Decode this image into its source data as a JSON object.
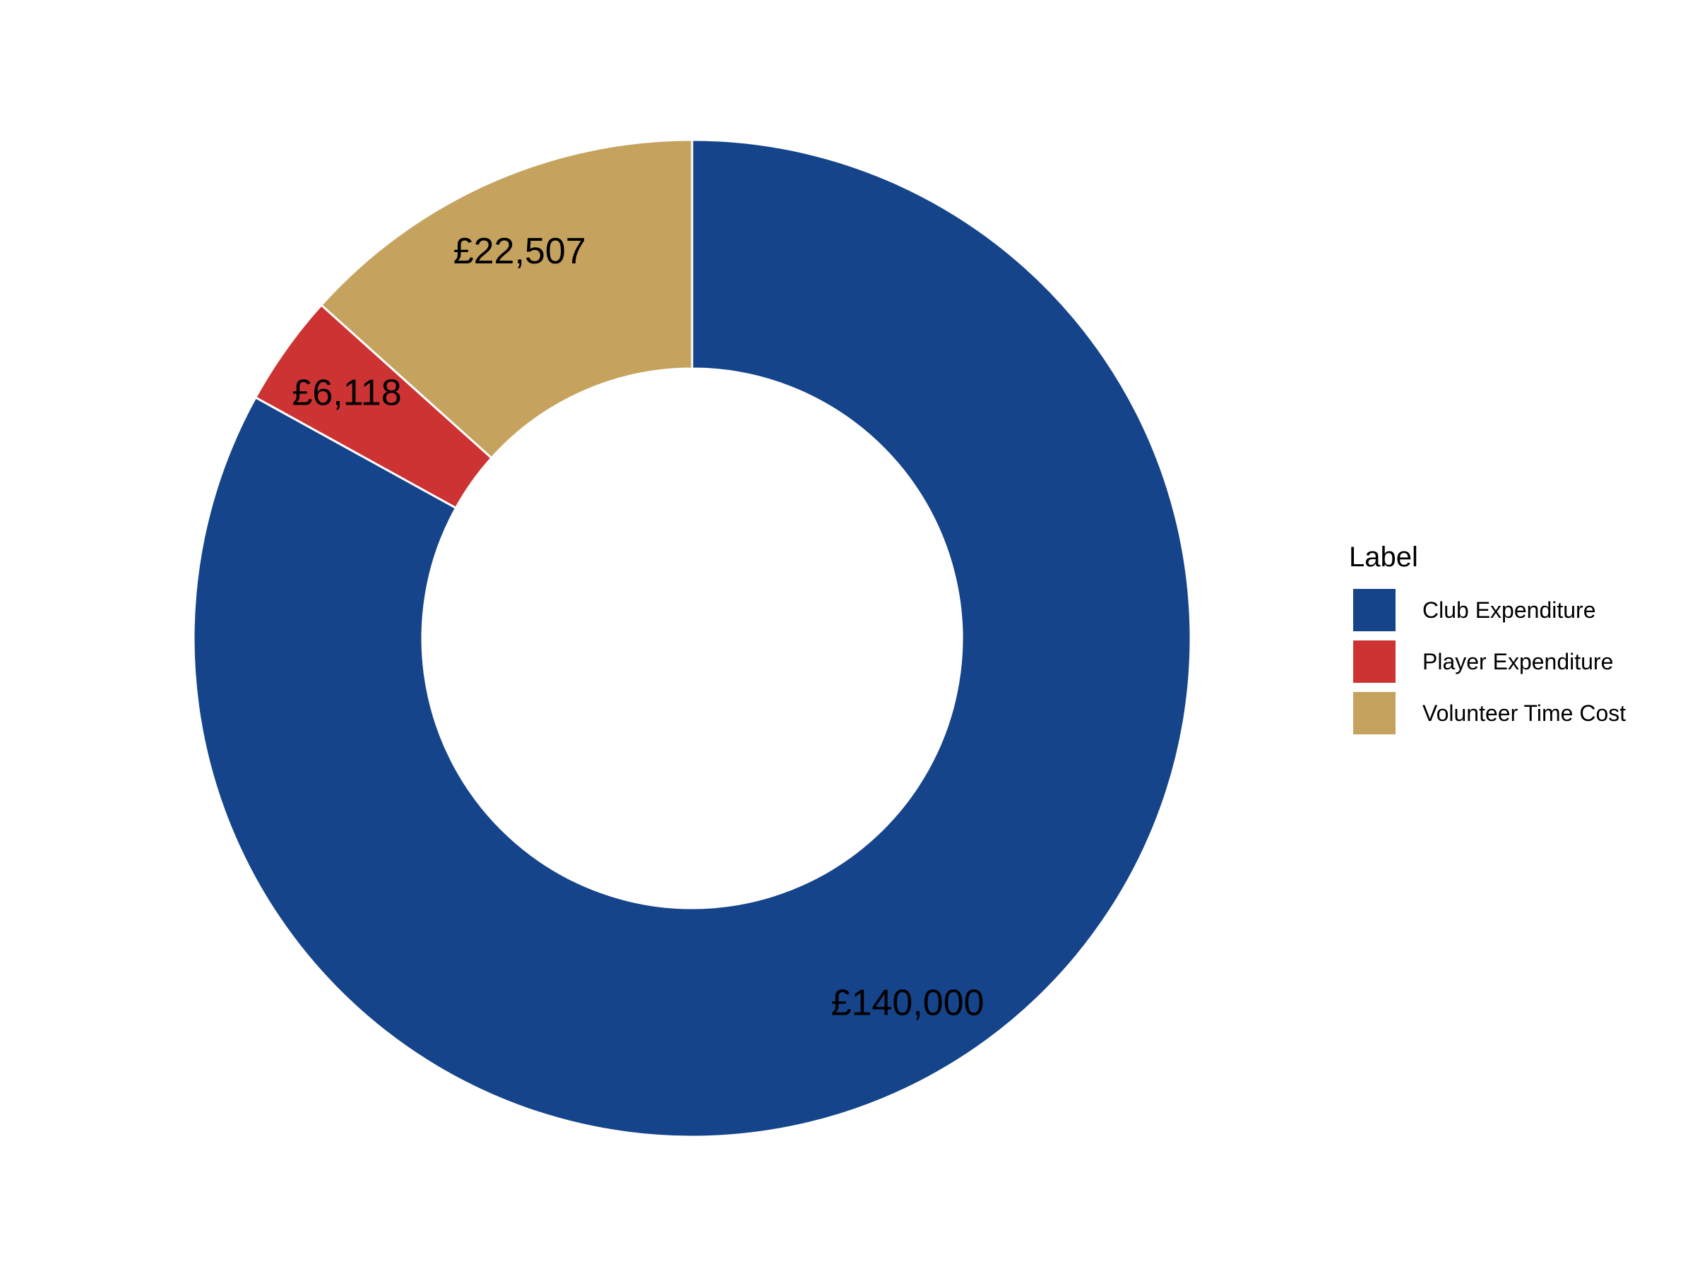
{
  "chart_data": {
    "type": "pie",
    "variant": "donut",
    "title": "",
    "legend": {
      "title": "Label",
      "position": "right"
    },
    "slices": [
      {
        "label": "Club Expenditure",
        "value": 140000,
        "display": "£140,000",
        "color": "#15448A"
      },
      {
        "label": "Player Expenditure",
        "value": 6118,
        "display": "£6,118",
        "color": "#CE3333"
      },
      {
        "label": "Volunteer Time Cost",
        "value": 22507,
        "display": "£22,507",
        "color": "#C5A35E"
      }
    ],
    "start": "12 o'clock",
    "direction": "counter-clockwise",
    "order": [
      "Volunteer Time Cost",
      "Player Expenditure",
      "Club Expenditure"
    ]
  }
}
